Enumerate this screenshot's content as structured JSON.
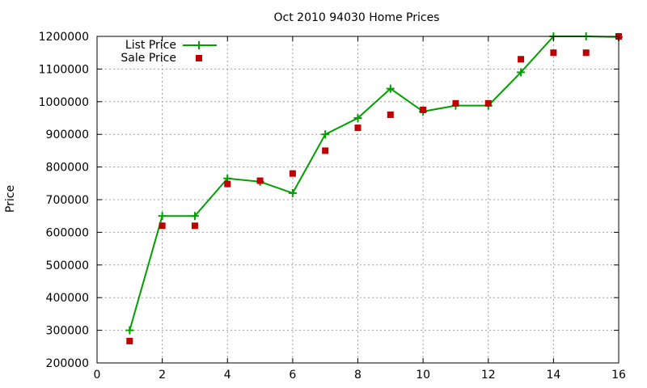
{
  "chart_data": {
    "type": "line",
    "title": "Oct 2010 94030 Home Prices",
    "xlabel": "",
    "ylabel": "Price",
    "xlim": [
      0,
      16
    ],
    "ylim": [
      200000,
      1200000
    ],
    "x_ticks": [
      0,
      2,
      4,
      6,
      8,
      10,
      12,
      14,
      16
    ],
    "x_tick_labels": [
      "0",
      "2",
      "4",
      "6",
      "8",
      "10",
      "12",
      "14",
      "16"
    ],
    "y_ticks": [
      200000,
      300000,
      400000,
      500000,
      600000,
      700000,
      800000,
      900000,
      1000000,
      1100000,
      1200000
    ],
    "y_tick_labels": [
      "200000",
      "300000",
      "400000",
      "500000",
      "600000",
      "700000",
      "800000",
      "900000",
      "1000000",
      "1100000",
      "1200000"
    ],
    "grid": true,
    "legend_position": "top-left",
    "series": [
      {
        "name": "List Price",
        "style": "line with plus markers",
        "color": "#00a000",
        "x": [
          1,
          2,
          3,
          4,
          5,
          6,
          7,
          8,
          9,
          10,
          11,
          12,
          13,
          14,
          15,
          16
        ],
        "values": [
          300000,
          650000,
          650000,
          765000,
          755000,
          720000,
          900000,
          950000,
          1040000,
          970000,
          988000,
          988000,
          1090000,
          1200000,
          1200000,
          1198000
        ]
      },
      {
        "name": "Sale Price",
        "style": "square markers",
        "color": "#c00000",
        "x": [
          1,
          2,
          3,
          4,
          5,
          6,
          7,
          8,
          9,
          10,
          11,
          12,
          13,
          14,
          15,
          16
        ],
        "values": [
          267000,
          620000,
          620000,
          748000,
          758000,
          780000,
          850000,
          920000,
          960000,
          975000,
          995000,
          995000,
          1130000,
          1150000,
          1150000,
          1200000
        ]
      }
    ]
  }
}
